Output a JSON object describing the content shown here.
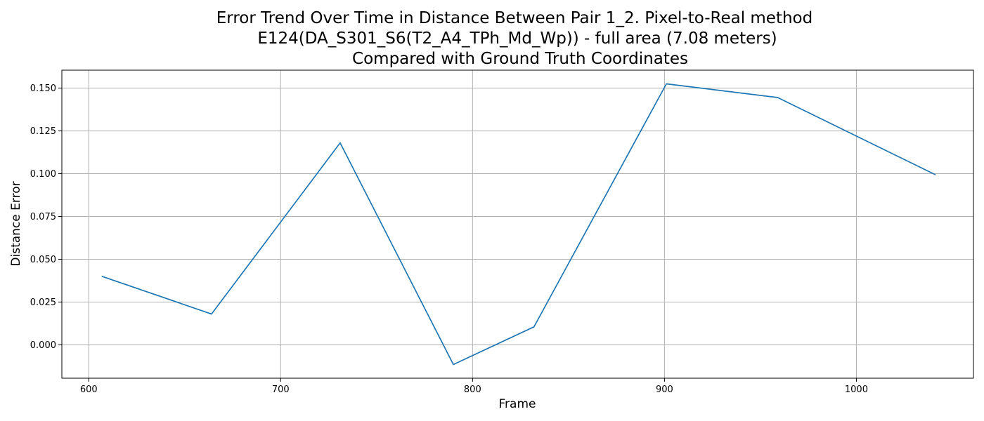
{
  "chart_data": {
    "type": "line",
    "title_lines": [
      "Error Trend Over Time in Distance Between Pair 1_2. Pixel-to-Real method",
      "E124(DA_S301_S6(T2_A4_TPh_Md_Wp)) - full area (7.08 meters)",
      "Compared with Ground Truth Coordinates"
    ],
    "xlabel": "Frame",
    "ylabel": "Distance Error",
    "xlim": [
      586,
      1061
    ],
    "ylim": [
      -0.0195,
      0.1605
    ],
    "xticks": [
      600,
      700,
      800,
      900,
      1000
    ],
    "yticks": [
      0.0,
      0.025,
      0.05,
      0.075,
      0.1,
      0.125,
      0.15
    ],
    "ytick_labels": [
      "0.000",
      "0.025",
      "0.050",
      "0.075",
      "0.100",
      "0.125",
      "0.150"
    ],
    "grid": true,
    "series_color": "#1f77b4",
    "x": [
      607,
      664,
      731,
      790,
      832,
      901,
      959,
      1041
    ],
    "y": [
      0.04,
      0.018,
      0.118,
      -0.0115,
      0.0105,
      0.1525,
      0.1445,
      0.0995
    ]
  }
}
